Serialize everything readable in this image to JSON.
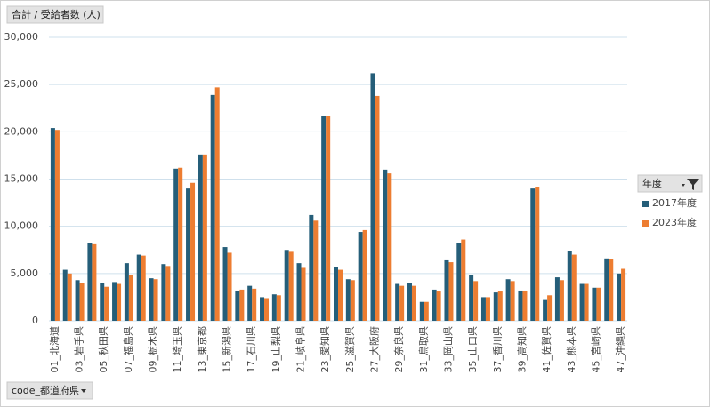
{
  "chart_data": {
    "type": "bar",
    "value_field": "合計 / 受給者数 (人)",
    "axis_field": "code_都道府県",
    "legend_title": "年度",
    "categories": [
      "01_北海道",
      null,
      "03_岩手県",
      null,
      "05_秋田県",
      null,
      "07_福島県",
      null,
      "09_栃木県",
      null,
      "11_埼玉県",
      null,
      "13_東京都",
      null,
      "15_新潟県",
      null,
      "17_石川県",
      null,
      "19_山梨県",
      null,
      "21_岐阜県",
      null,
      "23_愛知県",
      null,
      "25_滋賀県",
      null,
      "27_大阪府",
      null,
      "29_奈良県",
      null,
      "31_鳥取県",
      null,
      "33_岡山県",
      null,
      "35_山口県",
      null,
      "37_香川県",
      null,
      "39_高知県",
      null,
      "41_佐賀県",
      null,
      "43_熊本県",
      null,
      "45_宮崎県",
      null,
      "47_沖縄県"
    ],
    "series": [
      {
        "name": "2017年度",
        "color": "#255e79",
        "values": [
          20400,
          5400,
          4300,
          8200,
          4000,
          4100,
          6100,
          7000,
          4500,
          6000,
          16100,
          14000,
          17600,
          23900,
          7800,
          3200,
          3700,
          2500,
          2800,
          7500,
          6100,
          11200,
          21700,
          5700,
          4400,
          9400,
          26200,
          16000,
          3900,
          4000,
          2000,
          3300,
          6400,
          8200,
          4800,
          2500,
          3000,
          4400,
          3200,
          14000,
          2200,
          4600,
          7400,
          3900,
          3500,
          6600,
          5000
        ]
      },
      {
        "name": "2023年度",
        "color": "#ed7d31",
        "values": [
          20200,
          5000,
          4000,
          8100,
          3600,
          3900,
          4800,
          6900,
          4400,
          5800,
          16200,
          14600,
          17600,
          24700,
          7200,
          3300,
          3400,
          2400,
          2700,
          7300,
          5600,
          10600,
          21700,
          5400,
          4300,
          9600,
          23800,
          15600,
          3700,
          3700,
          2000,
          3100,
          6200,
          8600,
          4200,
          2500,
          3100,
          4200,
          3200,
          14200,
          2700,
          4300,
          7000,
          3900,
          3500,
          6500,
          5500
        ]
      }
    ],
    "ylim": [
      0,
      30000
    ],
    "yticks": [
      0,
      {
        "value": 5000,
        "label": "5,000"
      },
      {
        "value": 10000,
        "label": "10,000"
      },
      {
        "value": 15000,
        "label": "15,000"
      },
      {
        "value": 20000,
        "label": "20,000"
      },
      {
        "value": 25000,
        "label": "25,000"
      },
      {
        "value": 30000,
        "label": "30,000"
      }
    ],
    "grid": true
  }
}
